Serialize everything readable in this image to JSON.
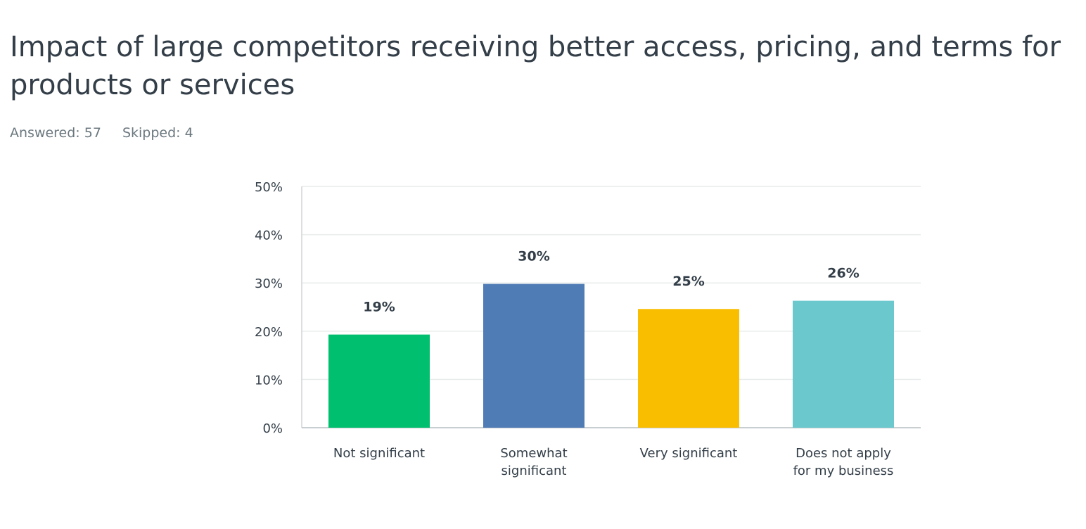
{
  "title": "Impact of large competitors receiving better access, pricing, and terms for products or services",
  "stats": {
    "answered": "Answered: 57",
    "skipped": "Skipped: 4"
  },
  "chart_data": {
    "type": "bar",
    "categories": [
      [
        "Not significant"
      ],
      [
        "Somewhat",
        "significant"
      ],
      [
        "Very significant"
      ],
      [
        "Does not apply",
        "for my business"
      ]
    ],
    "values": [
      19.3,
      29.8,
      24.6,
      26.3
    ],
    "data_labels": [
      "19%",
      "30%",
      "25%",
      "26%"
    ],
    "colors": [
      "#00bf6f",
      "#507cb6",
      "#f9be00",
      "#6bc8cd"
    ],
    "ylim": [
      0,
      50
    ],
    "yticks": [
      0,
      10,
      20,
      30,
      40,
      50
    ],
    "ytick_labels": [
      "0%",
      "10%",
      "20%",
      "30%",
      "40%",
      "50%"
    ],
    "grid": true,
    "legend": "none",
    "xlabel": "",
    "ylabel": ""
  }
}
